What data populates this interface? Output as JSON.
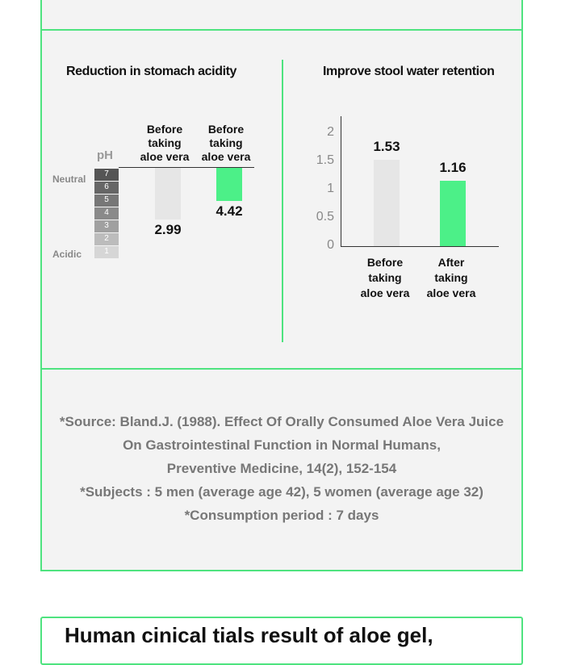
{
  "colors": {
    "border": "#4ee37f",
    "panel": "#f3f3f3",
    "bar_before": "#e6e6e6",
    "bar_after": "#4cf088"
  },
  "chart_data": [
    {
      "type": "bar",
      "title": "Reduction in stomach acidity",
      "ylabel": "pH",
      "scale_labels": {
        "top": "Neutral",
        "bottom": "Acidic"
      },
      "scale_values": [
        "7",
        "6",
        "5",
        "4",
        "3",
        "2",
        "1"
      ],
      "categories": [
        "Before\ntaking\naloe vera",
        "Before\ntaking\naloe vera"
      ],
      "values": [
        2.99,
        4.42
      ],
      "value_labels": [
        "2.99",
        "4.42"
      ],
      "ylim": [
        0,
        7
      ]
    },
    {
      "type": "bar",
      "title": "Improve stool water retention",
      "categories": [
        "Before\ntaking\naloe vera",
        "After\ntaking\naloe vera"
      ],
      "values": [
        1.53,
        1.16
      ],
      "value_labels": [
        "1.53",
        "1.16"
      ],
      "yticks": [
        "2",
        "1.5",
        "1",
        "0.5",
        "0"
      ],
      "ylim": [
        0,
        2
      ],
      "grid": false
    }
  ],
  "source": {
    "lines": [
      "*Source: Bland.J. (1988). Effect Of Orally Consumed Aloe Vera Juice",
      "On Gastrointestinal Function in Normal Humans,",
      "Preventive Medicine, 14(2), 152-154",
      "*Subjects : 5 men (average age 42), 5 women (average age 32)",
      "*Consumption period : 7 days"
    ]
  },
  "bottom": {
    "title": "Human cinical tials result of aloe gel,"
  }
}
